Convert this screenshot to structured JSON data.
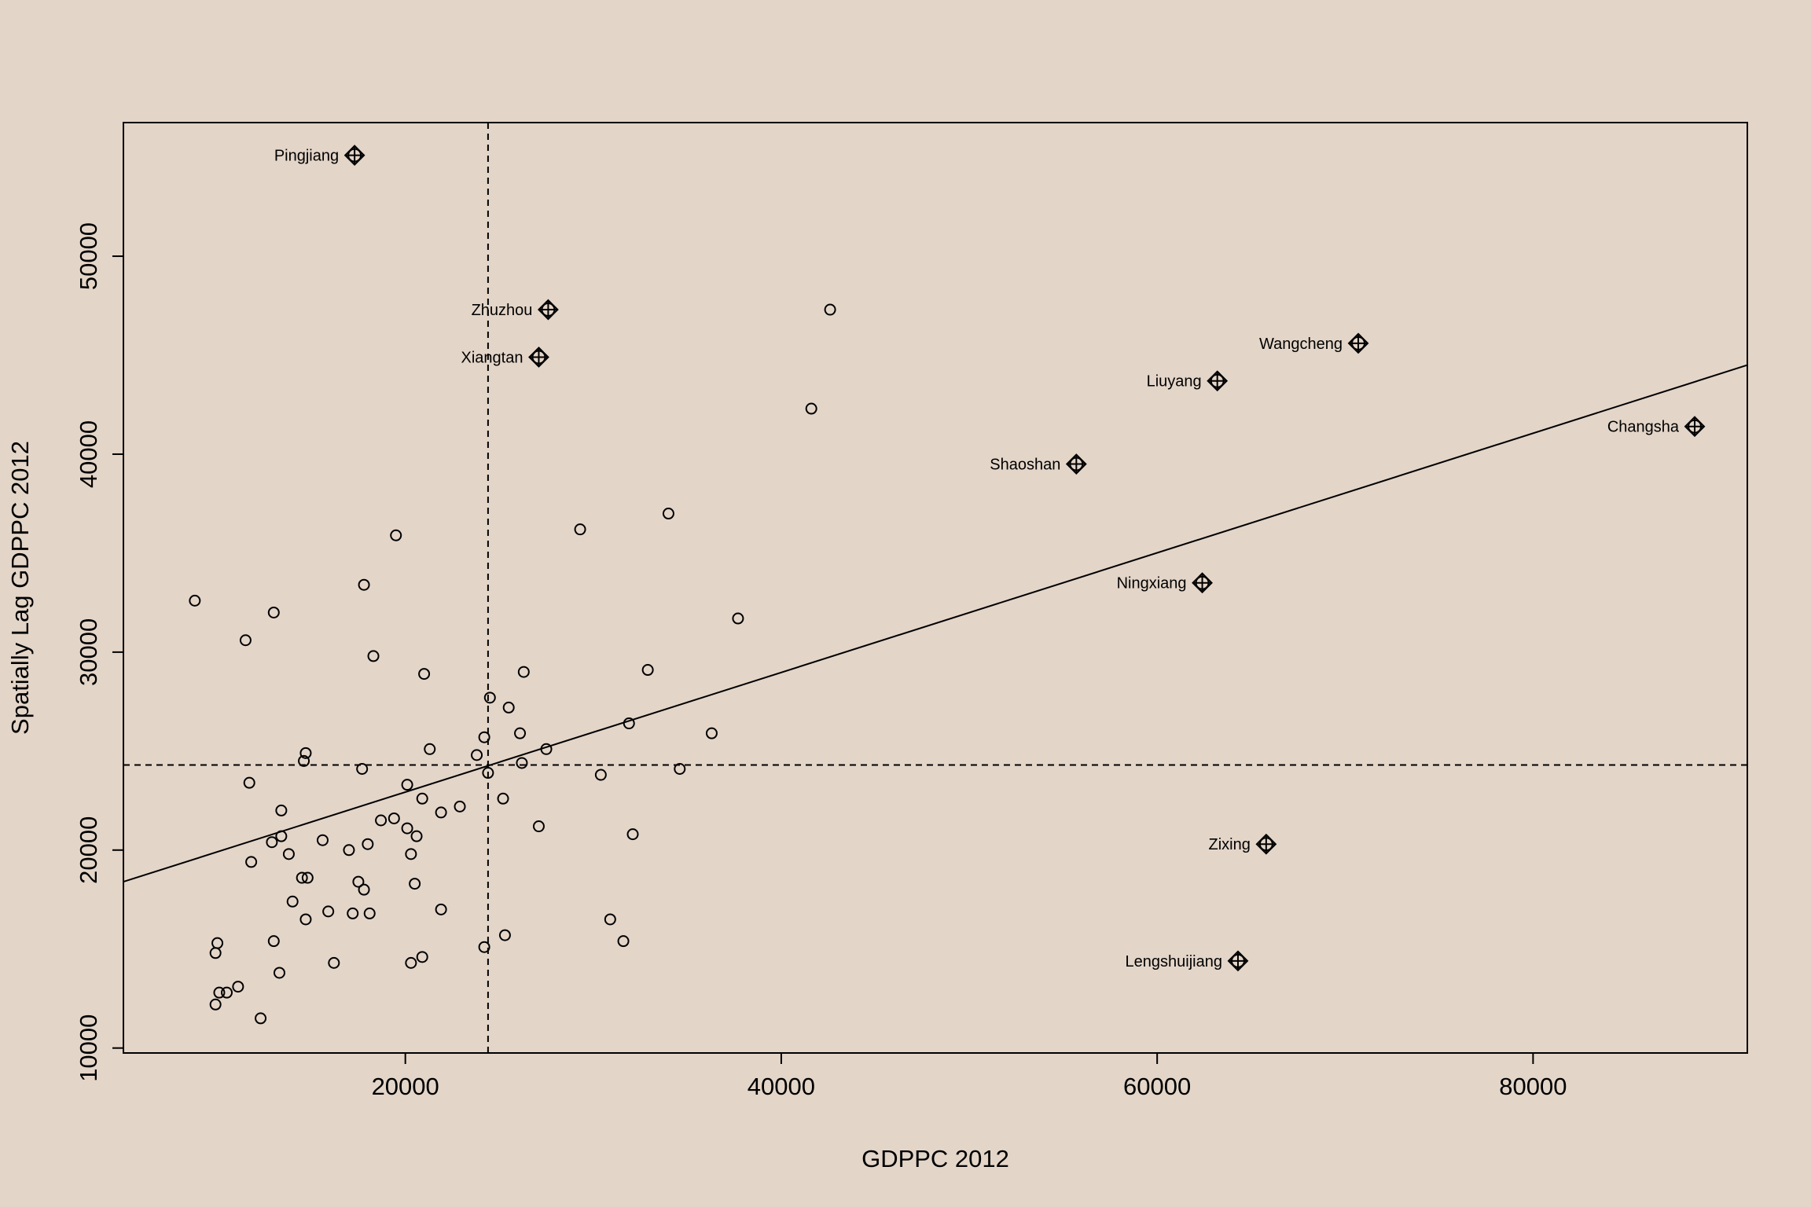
{
  "chart_data": {
    "type": "scatter",
    "title": "",
    "xlabel": "GDPPC 2012",
    "ylabel": "Spatially Lag GDPPC 2012",
    "xlim": [
      5000,
      91400
    ],
    "ylim": [
      9750,
      56750
    ],
    "x_ticks": [
      20000,
      40000,
      60000,
      80000
    ],
    "y_ticks": [
      10000,
      20000,
      30000,
      40000,
      50000
    ],
    "x_tick_labels": [
      "20000",
      "40000",
      "60000",
      "80000"
    ],
    "y_tick_labels": [
      "10000",
      "20000",
      "30000",
      "40000",
      "50000"
    ],
    "mean_x": 24400,
    "mean_y": 24300,
    "regression_line": {
      "x0": 5000,
      "y0": 18400,
      "x1": 91400,
      "y1": 44500
    },
    "points": [
      {
        "x": 8800,
        "y": 32600
      },
      {
        "x": 11500,
        "y": 30600
      },
      {
        "x": 13000,
        "y": 32000
      },
      {
        "x": 11700,
        "y": 23400
      },
      {
        "x": 14600,
        "y": 24500
      },
      {
        "x": 14700,
        "y": 24900
      },
      {
        "x": 13400,
        "y": 22000
      },
      {
        "x": 11800,
        "y": 19400
      },
      {
        "x": 12900,
        "y": 20400
      },
      {
        "x": 13400,
        "y": 20700
      },
      {
        "x": 13800,
        "y": 19800
      },
      {
        "x": 14500,
        "y": 18600
      },
      {
        "x": 14800,
        "y": 18600
      },
      {
        "x": 14000,
        "y": 17400
      },
      {
        "x": 14700,
        "y": 16500
      },
      {
        "x": 13000,
        "y": 15400
      },
      {
        "x": 10000,
        "y": 15300
      },
      {
        "x": 9900,
        "y": 14800
      },
      {
        "x": 13300,
        "y": 13800
      },
      {
        "x": 10100,
        "y": 12800
      },
      {
        "x": 10500,
        "y": 12800
      },
      {
        "x": 11100,
        "y": 13100
      },
      {
        "x": 9900,
        "y": 12200
      },
      {
        "x": 12300,
        "y": 11500
      },
      {
        "x": 15600,
        "y": 20500
      },
      {
        "x": 17000,
        "y": 20000
      },
      {
        "x": 18000,
        "y": 20300
      },
      {
        "x": 17500,
        "y": 18400
      },
      {
        "x": 17800,
        "y": 18000
      },
      {
        "x": 15900,
        "y": 16900
      },
      {
        "x": 17200,
        "y": 16800
      },
      {
        "x": 18100,
        "y": 16800
      },
      {
        "x": 16200,
        "y": 14300
      },
      {
        "x": 19500,
        "y": 35900
      },
      {
        "x": 17800,
        "y": 33400
      },
      {
        "x": 18300,
        "y": 29800
      },
      {
        "x": 21000,
        "y": 28900
      },
      {
        "x": 21300,
        "y": 25100
      },
      {
        "x": 17700,
        "y": 24100
      },
      {
        "x": 20100,
        "y": 23300
      },
      {
        "x": 20900,
        "y": 22600
      },
      {
        "x": 18700,
        "y": 21500
      },
      {
        "x": 19400,
        "y": 21600
      },
      {
        "x": 20100,
        "y": 21100
      },
      {
        "x": 20600,
        "y": 20700
      },
      {
        "x": 20300,
        "y": 19800
      },
      {
        "x": 20500,
        "y": 18300
      },
      {
        "x": 21900,
        "y": 21900
      },
      {
        "x": 22900,
        "y": 22200
      },
      {
        "x": 21900,
        "y": 17000
      },
      {
        "x": 20900,
        "y": 14600
      },
      {
        "x": 20300,
        "y": 14300
      },
      {
        "x": 24200,
        "y": 15100
      },
      {
        "x": 25300,
        "y": 15700
      },
      {
        "x": 24500,
        "y": 27700
      },
      {
        "x": 25500,
        "y": 27200
      },
      {
        "x": 24200,
        "y": 25700
      },
      {
        "x": 23800,
        "y": 24800
      },
      {
        "x": 24400,
        "y": 23900
      },
      {
        "x": 26100,
        "y": 25900
      },
      {
        "x": 26300,
        "y": 29000
      },
      {
        "x": 27500,
        "y": 25100
      },
      {
        "x": 26200,
        "y": 24400
      },
      {
        "x": 25200,
        "y": 22600
      },
      {
        "x": 27100,
        "y": 21200
      },
      {
        "x": 29300,
        "y": 36200
      },
      {
        "x": 34000,
        "y": 37000
      },
      {
        "x": 37700,
        "y": 31700
      },
      {
        "x": 32900,
        "y": 29100
      },
      {
        "x": 31900,
        "y": 26400
      },
      {
        "x": 36300,
        "y": 25900
      },
      {
        "x": 34600,
        "y": 24100
      },
      {
        "x": 30400,
        "y": 23800
      },
      {
        "x": 32100,
        "y": 20800
      },
      {
        "x": 30900,
        "y": 16500
      },
      {
        "x": 31600,
        "y": 15400
      },
      {
        "x": 42600,
        "y": 47300
      },
      {
        "x": 41600,
        "y": 42300
      }
    ],
    "influential_points": [
      {
        "label": "Pingjiang",
        "x": 17300,
        "y": 55100
      },
      {
        "label": "Zhuzhou",
        "x": 27600,
        "y": 47300
      },
      {
        "label": "Xiangtan",
        "x": 27100,
        "y": 44900
      },
      {
        "label": "Wangcheng",
        "x": 70700,
        "y": 45600
      },
      {
        "label": "Liuyang",
        "x": 63200,
        "y": 43700
      },
      {
        "label": "Changsha",
        "x": 88600,
        "y": 41400
      },
      {
        "label": "Shaoshan",
        "x": 55700,
        "y": 39500
      },
      {
        "label": "Ningxiang",
        "x": 62400,
        "y": 33500
      },
      {
        "label": "Zixing",
        "x": 65800,
        "y": 20300
      },
      {
        "label": "Lengshuijiang",
        "x": 64300,
        "y": 14400
      }
    ],
    "grid": false,
    "legend": "none"
  }
}
